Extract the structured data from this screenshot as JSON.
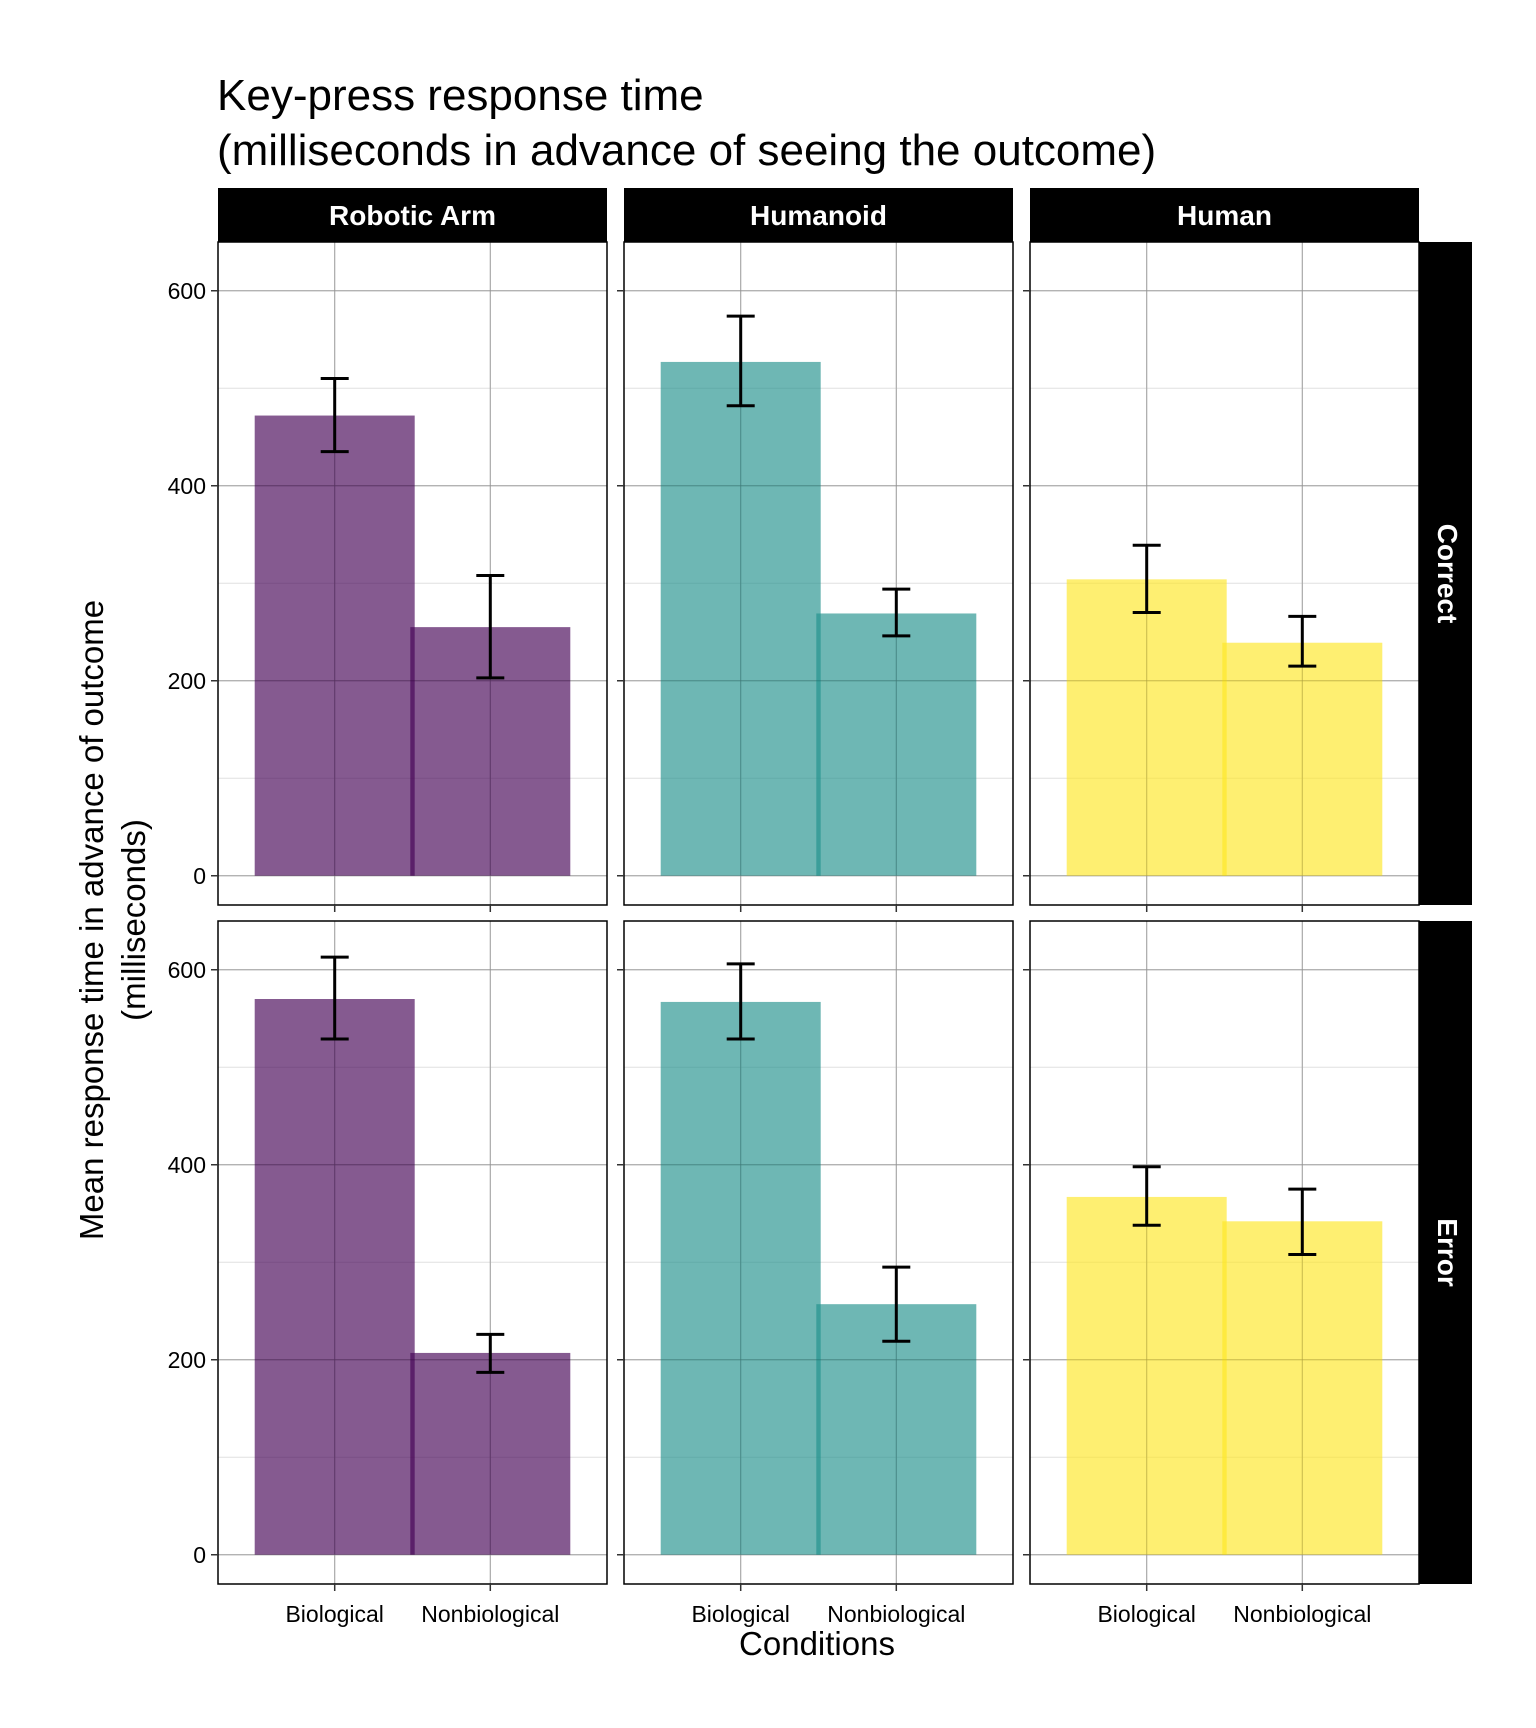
{
  "chart_data": {
    "type": "bar",
    "title_lines": [
      "Key-press response time",
      "(milliseconds in advance of seeing the outcome)"
    ],
    "xlabel": "Conditions",
    "ylabel_lines": [
      "Mean response time in advance of outcome",
      "(milliseconds)"
    ],
    "categories": [
      "Biological",
      "Nonbiological"
    ],
    "column_facets": [
      "Robotic Arm",
      "Humanoid",
      "Human"
    ],
    "row_facets": [
      "Correct",
      "Error"
    ],
    "ylim": [
      -30,
      650
    ],
    "yticks": [
      0,
      200,
      400,
      600
    ],
    "ytick_labels": [
      "0",
      "200",
      "400",
      "600"
    ],
    "grid": true,
    "colors": {
      "Robotic Arm": "#440154",
      "Humanoid": "#21908C",
      "Human": "#FDE725",
      "bar_opacity": 0.65,
      "strip_background": "#000000",
      "strip_text": "#ffffff",
      "gridline": "#bdbdbd"
    },
    "panels": [
      {
        "column": "Robotic Arm",
        "row": "Correct",
        "values": [
          472,
          255
        ],
        "error_low": [
          435,
          203
        ],
        "error_high": [
          510,
          308
        ]
      },
      {
        "column": "Humanoid",
        "row": "Correct",
        "values": [
          527,
          269
        ],
        "error_low": [
          482,
          246
        ],
        "error_high": [
          574,
          294
        ]
      },
      {
        "column": "Human",
        "row": "Correct",
        "values": [
          304,
          239
        ],
        "error_low": [
          270,
          215
        ],
        "error_high": [
          339,
          266
        ]
      },
      {
        "column": "Robotic Arm",
        "row": "Error",
        "values": [
          570,
          207
        ],
        "error_low": [
          529,
          187
        ],
        "error_high": [
          613,
          226
        ]
      },
      {
        "column": "Humanoid",
        "row": "Error",
        "values": [
          567,
          257
        ],
        "error_low": [
          529,
          219
        ],
        "error_high": [
          606,
          295
        ]
      },
      {
        "column": "Human",
        "row": "Error",
        "values": [
          367,
          342
        ],
        "error_low": [
          338,
          308
        ],
        "error_high": [
          398,
          375
        ]
      }
    ]
  }
}
